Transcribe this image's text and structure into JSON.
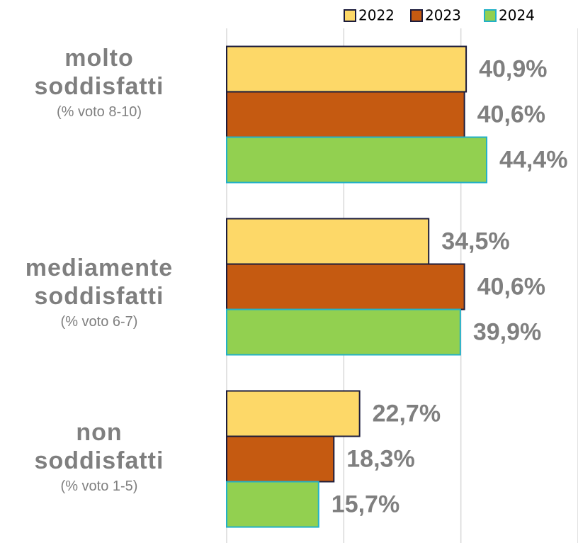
{
  "chart_data": {
    "type": "barh",
    "categories": [
      "molto soddisfatti",
      "mediamente soddisfatti",
      "non soddisfatti"
    ],
    "category_notes": [
      "(% voto 8-10)",
      "(% voto 6-7)",
      "(% voto 1-5)"
    ],
    "series": [
      {
        "name": "2022",
        "color": "#fdd868",
        "edgecolor": "#1c1c3c",
        "values": [
          40.9,
          34.5,
          22.7
        ],
        "value_labels": [
          "40,9%",
          "34,5%",
          "22,7%"
        ]
      },
      {
        "name": "2023",
        "color": "#c55a11",
        "edgecolor": "#1c1c3c",
        "values": [
          40.6,
          40.6,
          18.3
        ],
        "value_labels": [
          "40,6%",
          "40,6%",
          "18,3%"
        ]
      },
      {
        "name": "2024",
        "color": "#92d050",
        "edgecolor": "#22b0c8",
        "values": [
          44.4,
          39.9,
          15.7
        ],
        "value_labels": [
          "44,4%",
          "39,9%",
          "15,7%"
        ]
      }
    ],
    "xlim": [
      0,
      60
    ],
    "xticks": [
      0,
      20,
      40,
      60
    ],
    "grid": true,
    "legend": "top-right"
  }
}
